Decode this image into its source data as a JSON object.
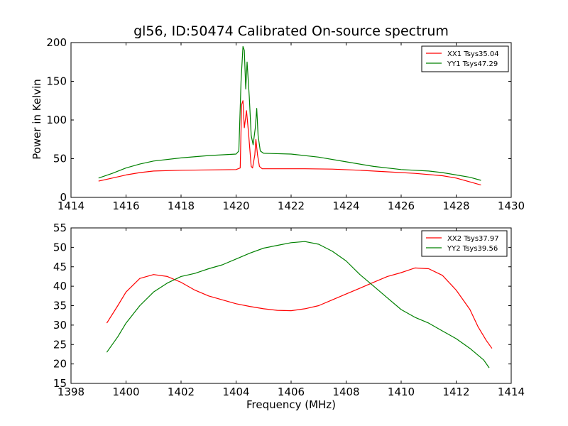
{
  "figure": {
    "title": "gl56, ID:50474 Calibrated On-source spectrum",
    "xlabel": "Frequency (MHz)",
    "ylabel": "Power in Kelvin"
  },
  "chart_data": [
    {
      "type": "line",
      "xlim": [
        1414,
        1430
      ],
      "ylim": [
        0,
        200
      ],
      "xticks": [
        1414,
        1416,
        1418,
        1420,
        1422,
        1424,
        1426,
        1428,
        1430
      ],
      "yticks": [
        0,
        50,
        100,
        150,
        200
      ],
      "legend": "top-right",
      "series": [
        {
          "name": "XX1 Tsys35.04",
          "color": "#ff0000",
          "points": [
            [
              1415.0,
              21
            ],
            [
              1415.5,
              25
            ],
            [
              1416.0,
              29
            ],
            [
              1416.5,
              32
            ],
            [
              1417.0,
              34
            ],
            [
              1418.0,
              35
            ],
            [
              1419.0,
              35.5
            ],
            [
              1420.0,
              36
            ],
            [
              1420.15,
              38
            ],
            [
              1420.2,
              120
            ],
            [
              1420.25,
              125
            ],
            [
              1420.3,
              90
            ],
            [
              1420.38,
              112
            ],
            [
              1420.45,
              85
            ],
            [
              1420.55,
              40
            ],
            [
              1420.6,
              38
            ],
            [
              1420.68,
              55
            ],
            [
              1420.72,
              75
            ],
            [
              1420.78,
              55
            ],
            [
              1420.85,
              40
            ],
            [
              1420.95,
              37
            ],
            [
              1421.5,
              37
            ],
            [
              1422.5,
              37
            ],
            [
              1423.5,
              36.5
            ],
            [
              1424.5,
              35
            ],
            [
              1425.5,
              33
            ],
            [
              1426.5,
              31
            ],
            [
              1427.5,
              28
            ],
            [
              1428.0,
              25
            ],
            [
              1428.5,
              20
            ],
            [
              1428.9,
              16
            ]
          ]
        },
        {
          "name": "YY1 Tsys47.29",
          "color": "#008000",
          "points": [
            [
              1415.0,
              25
            ],
            [
              1415.5,
              31
            ],
            [
              1416.0,
              38
            ],
            [
              1416.5,
              43
            ],
            [
              1417.0,
              47
            ],
            [
              1418.0,
              51
            ],
            [
              1419.0,
              54
            ],
            [
              1420.0,
              56
            ],
            [
              1420.1,
              60
            ],
            [
              1420.18,
              150
            ],
            [
              1420.25,
              195
            ],
            [
              1420.3,
              190
            ],
            [
              1420.35,
              140
            ],
            [
              1420.4,
              175
            ],
            [
              1420.48,
              130
            ],
            [
              1420.55,
              80
            ],
            [
              1420.62,
              68
            ],
            [
              1420.7,
              90
            ],
            [
              1420.75,
              115
            ],
            [
              1420.8,
              80
            ],
            [
              1420.88,
              60
            ],
            [
              1421.0,
              57
            ],
            [
              1422.0,
              56
            ],
            [
              1423.0,
              52
            ],
            [
              1424.0,
              46
            ],
            [
              1425.0,
              40
            ],
            [
              1426.0,
              36
            ],
            [
              1427.0,
              34
            ],
            [
              1427.5,
              32
            ],
            [
              1428.0,
              29
            ],
            [
              1428.5,
              26
            ],
            [
              1428.9,
              22
            ]
          ]
        }
      ]
    },
    {
      "type": "line",
      "xlim": [
        1398,
        1414
      ],
      "ylim": [
        15,
        55
      ],
      "xticks": [
        1398,
        1400,
        1402,
        1404,
        1406,
        1408,
        1410,
        1412,
        1414
      ],
      "yticks": [
        15,
        20,
        25,
        30,
        35,
        40,
        45,
        50,
        55
      ],
      "legend": "top-right",
      "series": [
        {
          "name": "XX2 Tsys37.97",
          "color": "#ff0000",
          "points": [
            [
              1399.3,
              30.5
            ],
            [
              1399.7,
              35
            ],
            [
              1400.0,
              38.5
            ],
            [
              1400.5,
              42
            ],
            [
              1401.0,
              43
            ],
            [
              1401.5,
              42.5
            ],
            [
              1402.0,
              41
            ],
            [
              1402.5,
              39
            ],
            [
              1403.0,
              37.5
            ],
            [
              1403.5,
              36.5
            ],
            [
              1404.0,
              35.5
            ],
            [
              1404.5,
              34.8
            ],
            [
              1405.0,
              34.2
            ],
            [
              1405.5,
              33.8
            ],
            [
              1406.0,
              33.7
            ],
            [
              1406.5,
              34.2
            ],
            [
              1407.0,
              35
            ],
            [
              1407.5,
              36.5
            ],
            [
              1408.0,
              38
            ],
            [
              1408.5,
              39.5
            ],
            [
              1409.0,
              41
            ],
            [
              1409.5,
              42.5
            ],
            [
              1410.0,
              43.5
            ],
            [
              1410.5,
              44.7
            ],
            [
              1411.0,
              44.5
            ],
            [
              1411.5,
              42.8
            ],
            [
              1412.0,
              39
            ],
            [
              1412.5,
              34
            ],
            [
              1412.8,
              29.5
            ],
            [
              1413.1,
              26
            ],
            [
              1413.3,
              24
            ]
          ]
        },
        {
          "name": "YY2 Tsys39.56",
          "color": "#008000",
          "points": [
            [
              1399.3,
              23
            ],
            [
              1399.7,
              27
            ],
            [
              1400.0,
              30.5
            ],
            [
              1400.5,
              35
            ],
            [
              1401.0,
              38.5
            ],
            [
              1401.5,
              40.8
            ],
            [
              1402.0,
              42.5
            ],
            [
              1402.5,
              43.3
            ],
            [
              1403.0,
              44.5
            ],
            [
              1403.5,
              45.5
            ],
            [
              1404.0,
              47
            ],
            [
              1404.5,
              48.5
            ],
            [
              1405.0,
              49.8
            ],
            [
              1405.5,
              50.5
            ],
            [
              1406.0,
              51.2
            ],
            [
              1406.5,
              51.5
            ],
            [
              1407.0,
              50.8
            ],
            [
              1407.5,
              49
            ],
            [
              1408.0,
              46.5
            ],
            [
              1408.5,
              43
            ],
            [
              1409.0,
              40
            ],
            [
              1409.5,
              37
            ],
            [
              1410.0,
              34
            ],
            [
              1410.5,
              32
            ],
            [
              1411.0,
              30.5
            ],
            [
              1411.5,
              28.5
            ],
            [
              1412.0,
              26.5
            ],
            [
              1412.5,
              24
            ],
            [
              1413.0,
              21
            ],
            [
              1413.2,
              19
            ]
          ]
        }
      ]
    }
  ]
}
